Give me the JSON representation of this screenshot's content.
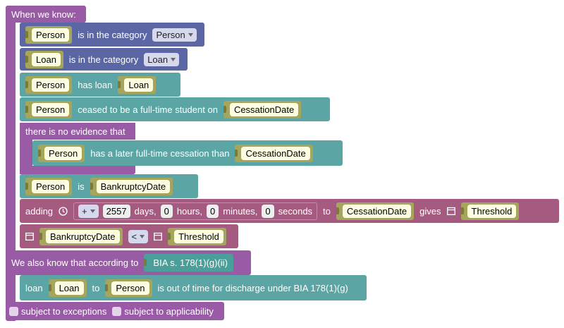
{
  "header": "When we know:",
  "conditions": [
    [
      "Person",
      "is in the category",
      "Person"
    ],
    [
      "Loan",
      "is in the category",
      "Loan"
    ],
    [
      "Person",
      "has loan",
      "Loan"
    ],
    [
      "Person",
      "ceased to be a full-time student on",
      "CessationDate"
    ]
  ],
  "negation": {
    "label": "there is no evidence that",
    "condition": [
      "Person",
      "has a later full-time cessation than",
      "CessationDate"
    ]
  },
  "bankruptcy": [
    "Person",
    "is",
    "BankruptcyDate"
  ],
  "adding": {
    "label": "adding",
    "operator": "+",
    "days": 2557,
    "days_label": "days,",
    "hours": 0,
    "hours_label": "hours,",
    "minutes": 0,
    "minutes_label": "minutes,",
    "seconds": 0,
    "seconds_label": "seconds",
    "to_label": "to",
    "from": "CessationDate",
    "gives_label": "gives",
    "result": "Threshold"
  },
  "comparison": [
    "BankruptcyDate",
    "<",
    "Threshold"
  ],
  "conclusion": {
    "label": "We also know that according to",
    "source": "BIA s. 178(1)(g)(ii)",
    "parts": [
      "loan",
      "Loan",
      "to",
      "Person",
      "is out of time for discharge under BIA 178(1)(g)"
    ]
  },
  "options": [
    "subject to exceptions",
    "subject to applicability"
  ]
}
